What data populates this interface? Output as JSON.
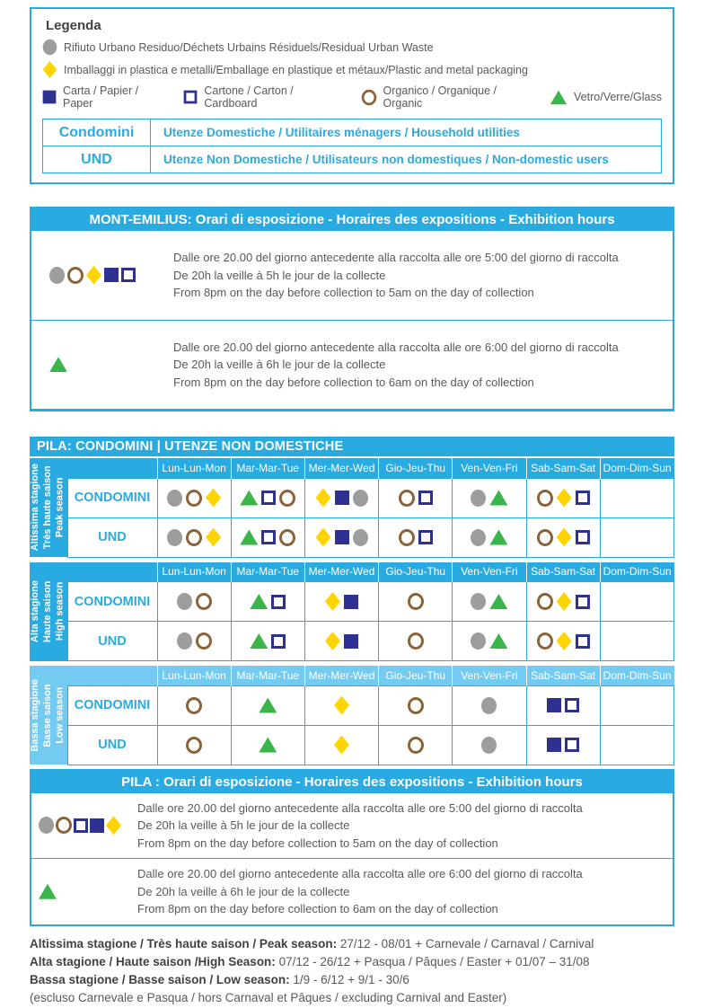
{
  "colors": {
    "cyan": "#29abe2",
    "cyan_light": "#74cbf1",
    "navy": "#2e3192",
    "yellow": "#ffd400",
    "gray": "#9d9d9c",
    "brown": "#8c6239",
    "green": "#39b54a",
    "text": "#58595b"
  },
  "legend": {
    "title": "Legenda",
    "rows": [
      [
        {
          "icon": "gray-circle",
          "label": "Rifiuto Urbano Residuo/Déchets Urbains Résiduels/Residual Urban Waste"
        }
      ],
      [
        {
          "icon": "yellow-diamond",
          "label": "Imballaggi in plastica e metalli/Emballage en plastique et métaux/Plastic and metal packaging"
        }
      ],
      [
        {
          "icon": "navy-square",
          "label": "Carta / Papier / Paper"
        },
        {
          "icon": "navy-square-open",
          "label": "Cartone / Carton / Cardboard"
        },
        {
          "icon": "brown-ring",
          "label": "Organico / Organique / Organic"
        },
        {
          "icon": "green-triangle",
          "label": "Vetro/Verre/Glass"
        }
      ]
    ],
    "user_types": [
      {
        "code": "Condomini",
        "desc": "Utenze Domestiche / Utilitaires ménagers / Household utilities"
      },
      {
        "code": "UND",
        "desc": "Utenze Non Domestiche / Utilisateurs non domestiques / Non-domestic users"
      }
    ]
  },
  "mont_emilius": {
    "title": "MONT-EMILIUS: Orari di esposizione - Horaires des expositions - Exhibition hours",
    "rows": [
      {
        "icons": [
          "gray-circle",
          "brown-ring",
          "yellow-diamond",
          "navy-square",
          "navy-square-open"
        ],
        "lines": [
          "Dalle ore 20.00 del giorno antecedente alla raccolta alle ore 5:00 del giorno di raccolta",
          "De 20h la veille à 5h le jour de la collecte",
          "From 8pm on the day before collection to 5am on the day of collection"
        ]
      },
      {
        "icons": [
          "green-triangle"
        ],
        "lines": [
          "Dalle ore 20.00 del giorno antecedente alla raccolta alle ore 6:00 del giorno di raccolta",
          "De 20h la veille à 6h le jour de la collecte",
          "From 8pm on the day before collection to 6am on the day of collection"
        ]
      }
    ]
  },
  "pila_table": {
    "title": "PILA: CONDOMINI | UTENZE NON DOMESTICHE",
    "days": [
      "Lun-Lun-Mon",
      "Mar-Mar-Tue",
      "Mer-Mer-Wed",
      "Gio-Jeu-Thu",
      "Ven-Ven-Fri",
      "Sab-Sam-Sat",
      "Dom-Dim-Sun"
    ],
    "seasons": [
      {
        "tone": "bright",
        "label_lines": [
          "Altissima stagione",
          "Très haute saison",
          "Peak season"
        ],
        "rows": [
          {
            "label": "CONDOMINI",
            "cells": [
              [
                "gray-circle",
                "brown-ring",
                "yellow-diamond"
              ],
              [
                "green-triangle",
                "navy-square-open",
                "brown-ring"
              ],
              [
                "yellow-diamond",
                "navy-square",
                "gray-circle"
              ],
              [
                "brown-ring",
                "navy-square-open"
              ],
              [
                "gray-circle",
                "green-triangle"
              ],
              [
                "brown-ring",
                "yellow-diamond",
                "navy-square-open"
              ],
              []
            ]
          },
          {
            "label": "UND",
            "cells": [
              [
                "gray-circle",
                "brown-ring",
                "yellow-diamond"
              ],
              [
                "green-triangle",
                "navy-square-open",
                "brown-ring"
              ],
              [
                "yellow-diamond",
                "navy-square",
                "gray-circle"
              ],
              [
                "brown-ring",
                "navy-square-open"
              ],
              [
                "gray-circle",
                "green-triangle"
              ],
              [
                "brown-ring",
                "yellow-diamond",
                "navy-square-open"
              ],
              []
            ]
          }
        ]
      },
      {
        "tone": "bright",
        "label_lines": [
          "Alta stagione",
          "Haute saison",
          "High season"
        ],
        "rows": [
          {
            "label": "CONDOMINI",
            "cells": [
              [
                "gray-circle",
                "brown-ring"
              ],
              [
                "green-triangle",
                "navy-square-open"
              ],
              [
                "yellow-diamond",
                "navy-square"
              ],
              [
                "brown-ring"
              ],
              [
                "gray-circle",
                "green-triangle"
              ],
              [
                "brown-ring",
                "yellow-diamond",
                "navy-square-open"
              ],
              []
            ]
          },
          {
            "label": "UND",
            "cells": [
              [
                "gray-circle",
                "brown-ring"
              ],
              [
                "green-triangle",
                "navy-square-open"
              ],
              [
                "yellow-diamond",
                "navy-square"
              ],
              [
                "brown-ring"
              ],
              [
                "gray-circle",
                "green-triangle"
              ],
              [
                "brown-ring",
                "yellow-diamond",
                "navy-square-open"
              ],
              []
            ]
          }
        ]
      },
      {
        "tone": "light",
        "label_lines": [
          "Bassa stagione",
          "Basse saison",
          "Low season"
        ],
        "rows": [
          {
            "label": "CONDOMINI",
            "cells": [
              [
                "brown-ring"
              ],
              [
                "green-triangle"
              ],
              [
                "yellow-diamond"
              ],
              [
                "brown-ring"
              ],
              [
                "gray-circle"
              ],
              [
                "navy-square",
                "navy-square-open"
              ],
              []
            ]
          },
          {
            "label": "UND",
            "cells": [
              [
                "brown-ring"
              ],
              [
                "green-triangle"
              ],
              [
                "yellow-diamond"
              ],
              [
                "brown-ring"
              ],
              [
                "gray-circle"
              ],
              [
                "navy-square",
                "navy-square-open"
              ],
              []
            ]
          }
        ]
      }
    ]
  },
  "pila_hours": {
    "title": "PILA : Orari di esposizione - Horaires des expositions - Exhibition hours",
    "rows": [
      {
        "icons": [
          "gray-circle",
          "brown-ring",
          "navy-square-open",
          "navy-square",
          "yellow-diamond"
        ],
        "lines": [
          "Dalle ore 20.00 del giorno antecedente alla raccolta alle ore 5:00 del giorno di raccolta",
          "De 20h la veille à 5h le jour de la collecte",
          "From 8pm on the day before collection to 5am on the day of collection"
        ]
      },
      {
        "icons": [
          "green-triangle"
        ],
        "lines": [
          "Dalle ore 20.00 del giorno antecedente alla raccolta alle ore 6:00 del giorno di raccolta",
          "De 20h la veille à 6h le jour de la collecte",
          "From 8pm on the day before collection to 6am on the day of collection"
        ]
      }
    ]
  },
  "footer": {
    "lines": [
      {
        "bold": "Altissima stagione / Très haute saison / Peak season:",
        "rest": " 27/12 - 08/01 + Carnevale / Carnaval / Carnival"
      },
      {
        "bold": "Alta stagione / Haute saison /High Season:",
        "rest": " 07/12 - 26/12 + Pasqua / Pâques / Easter + 01/07 – 31/08"
      },
      {
        "bold": "Bassa stagione / Basse saison / Low season:",
        "rest": " 1/9 - 6/12 + 9/1 - 30/6"
      },
      {
        "bold": "",
        "rest": "(escluso Carnevale e Pasqua / hors Carnaval et Pâques / excluding Carnival and Easter)"
      }
    ]
  }
}
